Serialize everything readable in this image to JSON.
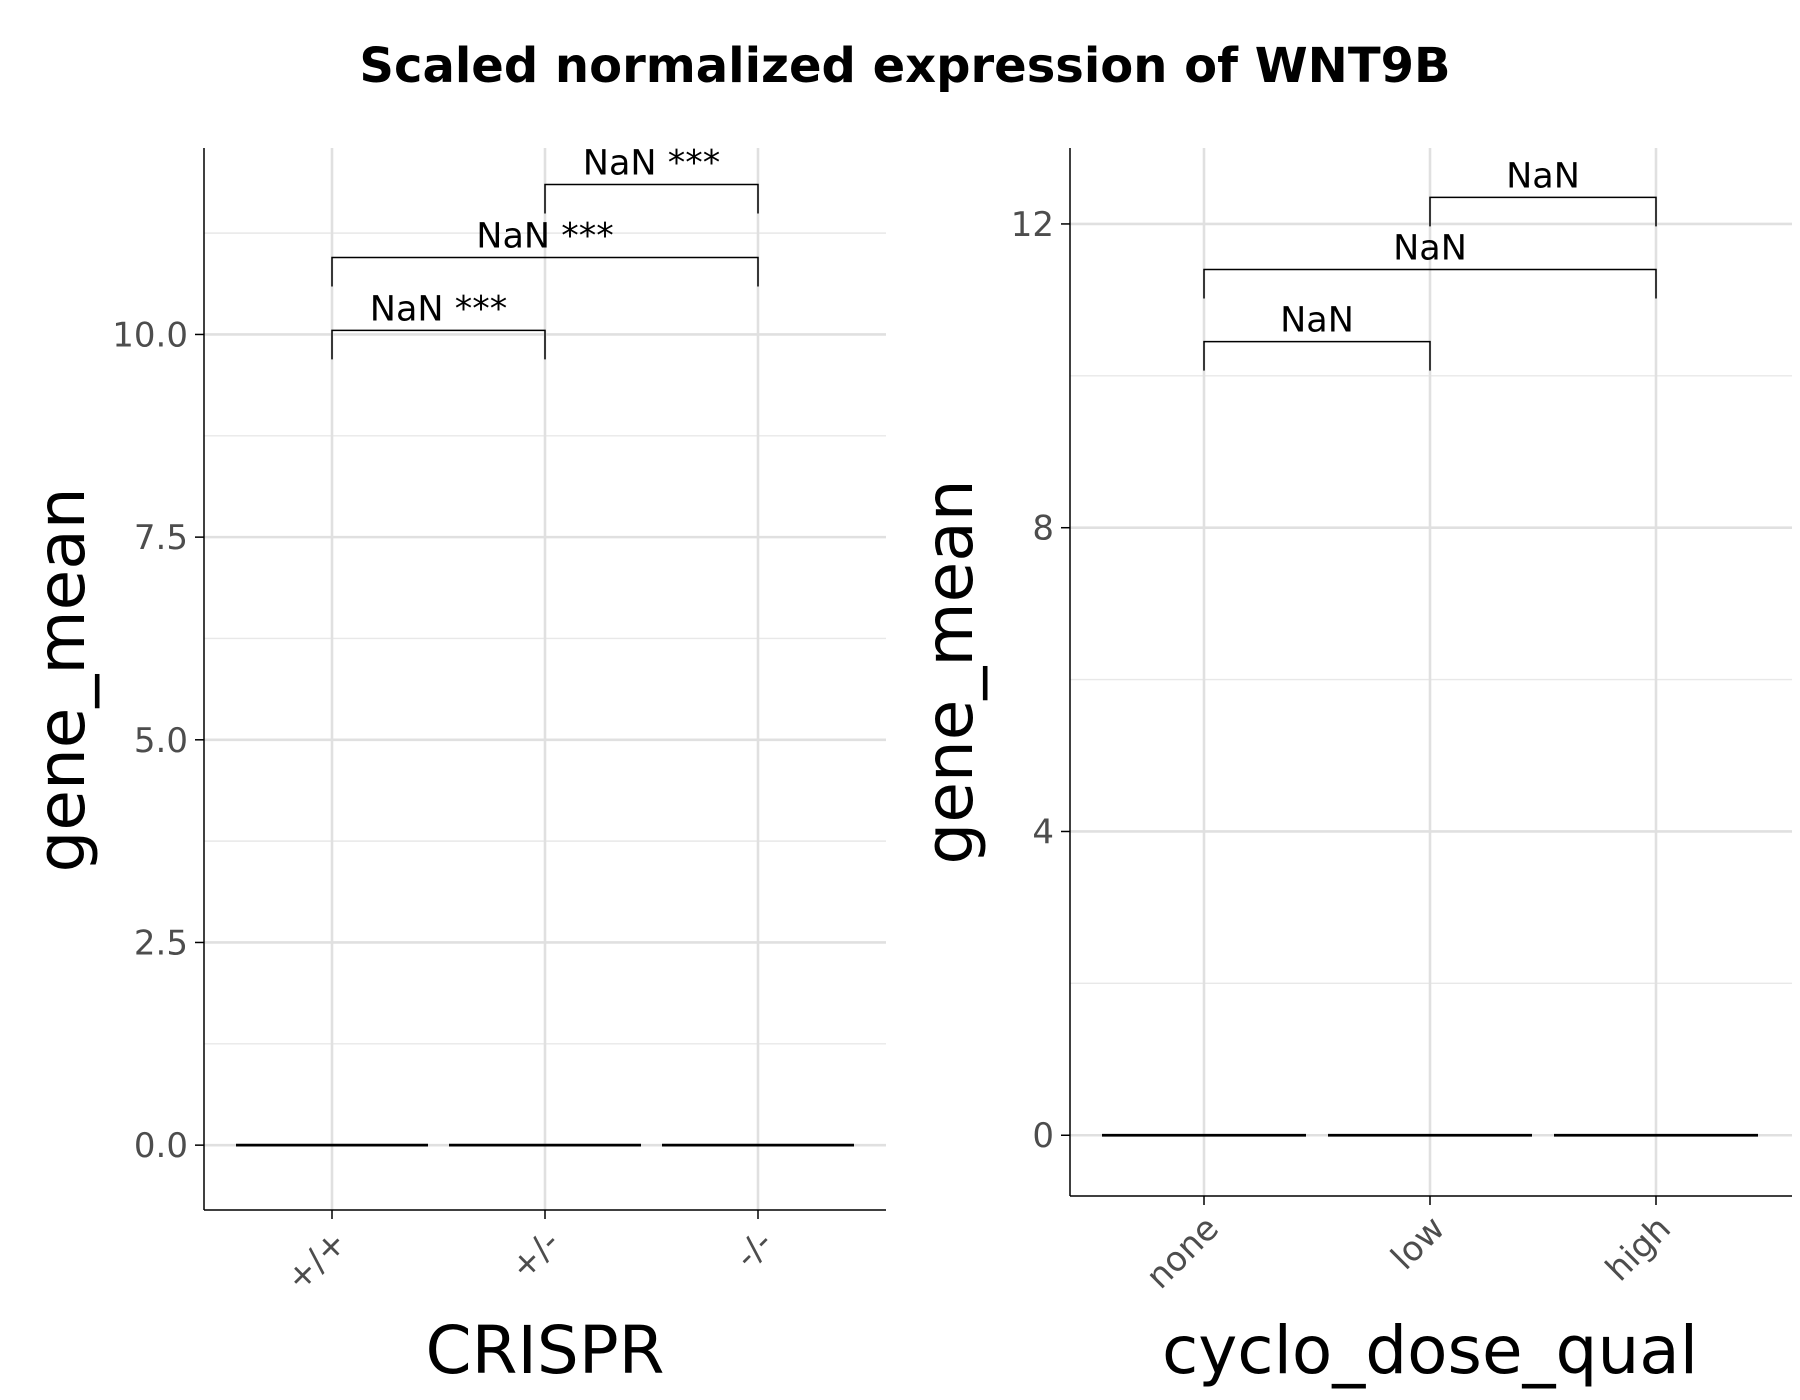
{
  "title": "Scaled normalized expression of WNT9B",
  "chart_data": [
    {
      "type": "box",
      "xlabel": "CRISPR",
      "ylabel": "gene_mean",
      "categories": [
        "+/+",
        "+/-",
        "-/-"
      ],
      "values": [
        0,
        0,
        0
      ],
      "ylim": [
        -0.8,
        12.3
      ],
      "yticks": [
        0.0,
        2.5,
        5.0,
        7.5,
        10.0
      ],
      "ytick_labels": [
        "0.0",
        "2.5",
        "5.0",
        "7.5",
        "10.0"
      ],
      "grid": true,
      "comparisons": [
        {
          "from": 0,
          "to": 1,
          "y": 10.05,
          "label": "NaN ***"
        },
        {
          "from": 0,
          "to": 2,
          "y": 10.95,
          "label": "NaN ***"
        },
        {
          "from": 1,
          "to": 2,
          "y": 11.85,
          "label": "NaN ***"
        }
      ]
    },
    {
      "type": "box",
      "xlabel": "cyclo_dose_qual",
      "ylabel": "gene_mean",
      "categories": [
        "none",
        "low",
        "high"
      ],
      "values": [
        0,
        0,
        0
      ],
      "ylim": [
        -0.8,
        13.0
      ],
      "yticks": [
        0,
        4,
        8,
        12
      ],
      "ytick_labels": [
        "0",
        "4",
        "8",
        "12"
      ],
      "grid": true,
      "comparisons": [
        {
          "from": 0,
          "to": 1,
          "y": 10.45,
          "label": "NaN"
        },
        {
          "from": 0,
          "to": 2,
          "y": 11.4,
          "label": "NaN"
        },
        {
          "from": 1,
          "to": 2,
          "y": 12.35,
          "label": "NaN"
        }
      ]
    }
  ]
}
